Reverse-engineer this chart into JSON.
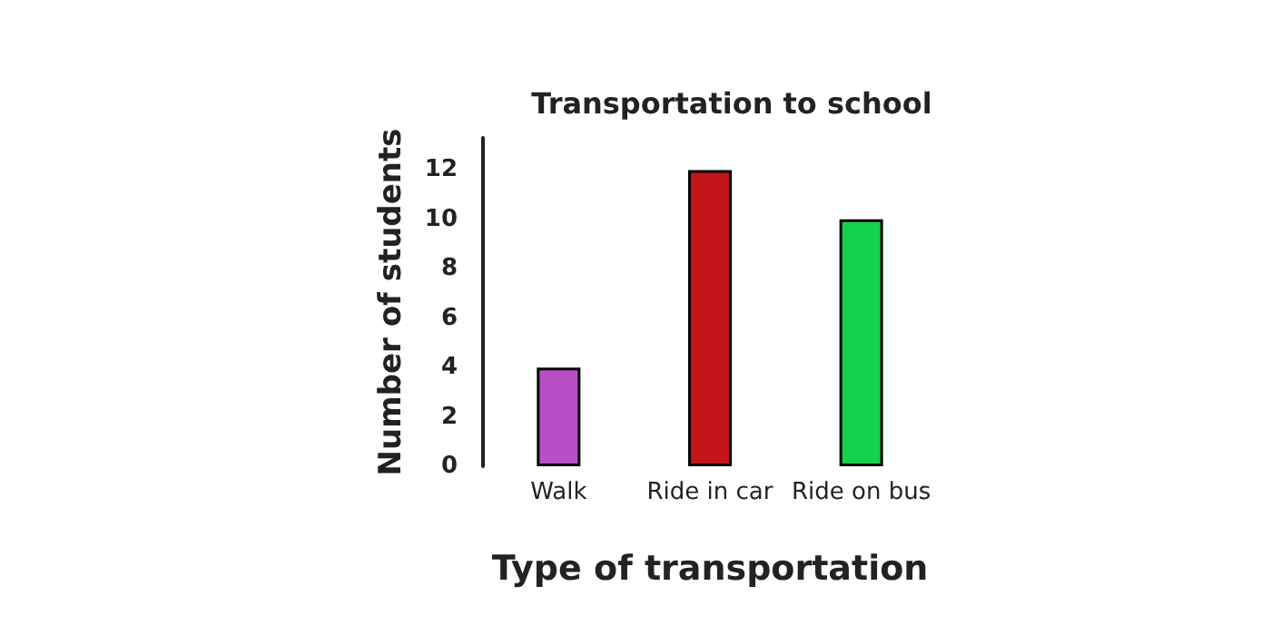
{
  "chart_data": {
    "type": "bar",
    "title": "Transportation to school",
    "xlabel": "Type of transportation",
    "ylabel": "Number of students",
    "categories": [
      "Walk",
      "Ride in car",
      "Ride on bus"
    ],
    "values": [
      4,
      12,
      10
    ],
    "colors": [
      "#b84fc6",
      "#c2161b",
      "#14d24c"
    ],
    "ylim": [
      0,
      13.3
    ],
    "yticks": [
      0,
      2,
      4,
      6,
      8,
      10,
      12
    ],
    "grid": false
  }
}
